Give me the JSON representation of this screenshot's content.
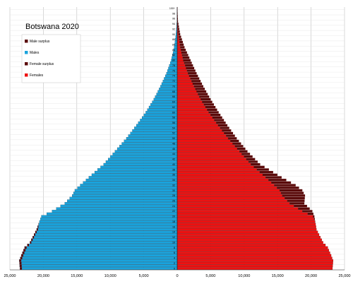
{
  "chart_data": {
    "type": "bar",
    "title": "Botswana 2020",
    "orientation": "horizontal-pyramid",
    "x_axis_ticks": [
      "25,000",
      "20,000",
      "15,000",
      "10,000",
      "5,000",
      "0",
      "5,000",
      "10,000",
      "15,000",
      "20,000",
      "25,000"
    ],
    "xlim": [
      -25000,
      25000
    ],
    "grid": true,
    "legend_position": "top-left",
    "legend": [
      {
        "label": "Male surplus",
        "color": "#5a0a0a"
      },
      {
        "label": "Males",
        "color": "#1aa3dc"
      },
      {
        "label": "Female surplus",
        "color": "#5a0a0a"
      },
      {
        "label": "Females",
        "color": "#ee1111"
      }
    ],
    "age_tick_labels": [
      "0",
      "2",
      "4",
      "6",
      "8",
      "10",
      "12",
      "14",
      "16",
      "18",
      "20",
      "22",
      "24",
      "26",
      "28",
      "30",
      "32",
      "34",
      "36",
      "38",
      "40",
      "42",
      "44",
      "46",
      "48",
      "50",
      "52",
      "54",
      "56",
      "58",
      "60",
      "62",
      "64",
      "66",
      "68",
      "70",
      "72",
      "74",
      "76",
      "78",
      "80",
      "82",
      "84",
      "86",
      "88",
      "90",
      "92",
      "94",
      "96",
      "98",
      "100+"
    ],
    "anchors": {
      "ages": [
        0,
        3,
        5,
        8,
        10,
        15,
        20,
        22,
        25,
        28,
        30,
        32,
        35,
        38,
        40,
        45,
        50,
        55,
        60,
        65,
        70,
        75,
        80,
        85,
        90,
        95,
        100
      ],
      "males": [
        23500,
        23600,
        23300,
        22800,
        22000,
        21000,
        20300,
        18700,
        16800,
        15700,
        15300,
        14500,
        13200,
        11900,
        11000,
        9300,
        7600,
        6100,
        4700,
        3500,
        2500,
        1600,
        900,
        450,
        180,
        40,
        10
      ],
      "females": [
        23200,
        23300,
        23000,
        22500,
        21800,
        20800,
        20500,
        20200,
        19000,
        19100,
        18700,
        17700,
        15600,
        13700,
        12400,
        10500,
        8900,
        7500,
        6200,
        5000,
        3900,
        2900,
        2000,
        1100,
        450,
        120,
        30
      ]
    }
  }
}
